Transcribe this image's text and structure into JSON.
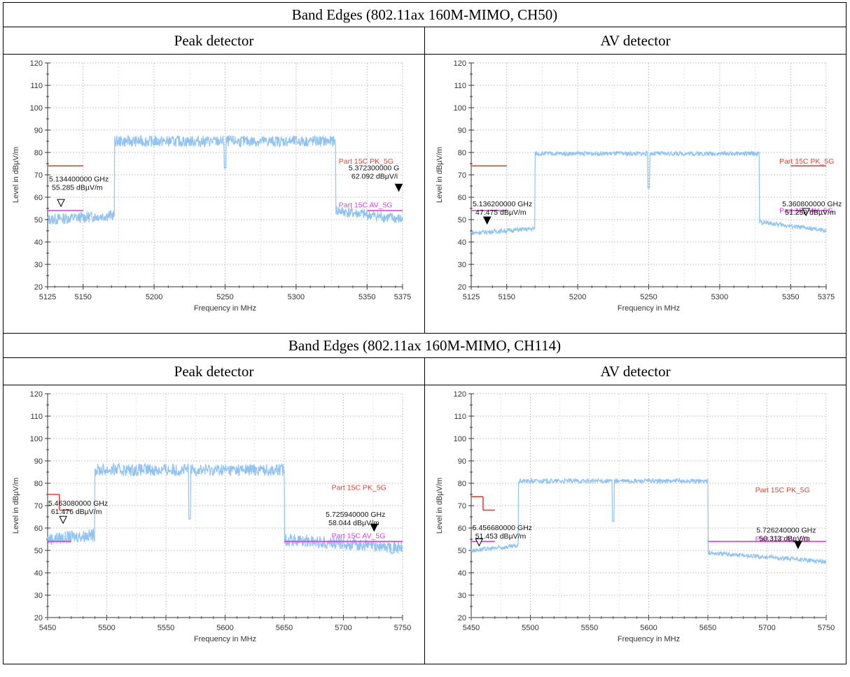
{
  "sections": [
    {
      "title": "Band Edges (802.11ax 160M-MIMO, CH50)"
    },
    {
      "title": "Band Edges (802.11ax 160M-MIMO, CH114)"
    }
  ],
  "detector_labels": {
    "peak": "Peak detector",
    "av": "AV detector"
  },
  "colors": {
    "trace": "#8fc3f5",
    "pk_limit": "#e8412f",
    "av_limit": "#e040e0",
    "grid": "#c8c8c8",
    "marker": "#000000"
  },
  "chart_data": [
    {
      "type": "line",
      "xlabel": "Frequency in MHz",
      "ylabel": "Level in dBµV/m",
      "xlim": [
        5125,
        5375
      ],
      "ylim": [
        20,
        120
      ],
      "xticks": [
        5125,
        5150,
        5200,
        5250,
        5300,
        5350,
        5375
      ],
      "yticks": [
        20,
        30,
        40,
        50,
        60,
        70,
        80,
        90,
        100,
        110,
        120
      ],
      "grid": true,
      "trace": {
        "low_x": [
          5125,
          5172
        ],
        "high_x": [
          5172,
          5328
        ],
        "high_to": 5375,
        "low_level": 50,
        "high_level": 85,
        "right_level": 54,
        "noise": 2.5,
        "notch_x": 5250,
        "notch_y": 73
      },
      "limits": [
        {
          "name": "Part 15C PK_5G",
          "color": "#e8412f",
          "segments": [
            [
              5125,
              74,
              5150,
              74
            ]
          ]
        },
        {
          "name": "Part 15C AV_5G",
          "color": "#e040e0",
          "segments": [
            [
              5125,
              54,
              5150,
              54
            ],
            [
              5350,
              54,
              5375,
              54
            ]
          ]
        }
      ],
      "limit_labels": [
        {
          "text": "Part 15C PK_5G",
          "color": "#e8412f",
          "x": 5330,
          "y": 75
        },
        {
          "text": "Part 15C AV_5G",
          "color": "#e040e0",
          "x": 5330,
          "y": 55.5
        }
      ],
      "markers": [
        {
          "x": 5134.4,
          "y": 55.285,
          "filled": false,
          "freq": "5.134400000 GHz",
          "level": "55.285 dBµV/m",
          "label_x": 5126,
          "label_y": 67
        },
        {
          "x": 5372.3,
          "y": 62.092,
          "filled": true,
          "freq": "5.372300000 G",
          "level": "62.092 dBµV/i",
          "label_x": 5337,
          "label_y": 72
        }
      ]
    },
    {
      "type": "line",
      "xlabel": "Frequency in MHz",
      "ylabel": "Level in dBµV/m",
      "xlim": [
        5125,
        5375
      ],
      "ylim": [
        20,
        120
      ],
      "xticks": [
        5125,
        5150,
        5200,
        5250,
        5300,
        5350,
        5375
      ],
      "yticks": [
        20,
        30,
        40,
        50,
        60,
        70,
        80,
        90,
        100,
        110,
        120
      ],
      "grid": true,
      "trace": {
        "low_x": [
          5125,
          5170
        ],
        "high_x": [
          5170,
          5328
        ],
        "high_to": 5375,
        "low_level": 44,
        "high_level": 79.5,
        "right_level": 49,
        "noise": 1.0,
        "notch_x": 5250,
        "notch_y": 64
      },
      "limits": [
        {
          "name": "Part 15C PK_5G",
          "color": "#e8412f",
          "segments": [
            [
              5125,
              74,
              5150,
              74
            ],
            [
              5350,
              74,
              5375,
              74
            ]
          ]
        },
        {
          "name": "Part 15C AV_5G",
          "color": "#e040e0",
          "segments": [
            [
              5125,
              54,
              5150,
              54
            ],
            [
              5350,
              54,
              5375,
              54
            ]
          ]
        }
      ],
      "limit_labels": [
        {
          "text": "Part 15C PK_5G",
          "color": "#e8412f",
          "x": 5342,
          "y": 75
        },
        {
          "text": "Part 15C AV_5G",
          "color": "#e040e0",
          "x": 5342,
          "y": 53
        }
      ],
      "markers": [
        {
          "x": 5136.2,
          "y": 47.475,
          "filled": true,
          "freq": "5.136200000 GHz",
          "level": "47.475 dBµV/m",
          "label_x": 5126,
          "label_y": 56
        },
        {
          "x": 5360.8,
          "y": 51.258,
          "filled": false,
          "freq": "5.360800000 GHz",
          "level": "51.258 dBµV/m",
          "label_x": 5344,
          "label_y": 56
        }
      ]
    },
    {
      "type": "line",
      "xlabel": "Frequency in MHz",
      "ylabel": "Level in dBµV/m",
      "xlim": [
        5450,
        5750
      ],
      "ylim": [
        20,
        120
      ],
      "xticks": [
        5450,
        5500,
        5550,
        5600,
        5650,
        5700,
        5750
      ],
      "yticks": [
        20,
        30,
        40,
        50,
        60,
        70,
        80,
        90,
        100,
        110,
        120
      ],
      "grid": true,
      "trace": {
        "low_x": [
          5450,
          5490
        ],
        "high_x": [
          5490,
          5650
        ],
        "high_to": 5750,
        "low_level": 55,
        "high_level": 86,
        "right_level": 55,
        "noise": 2.8,
        "notch_x": 5570,
        "notch_y": 64
      },
      "limits": [
        {
          "name": "Part 15C PK_5G",
          "color": "#e8412f",
          "segments": [
            [
              5450,
              75,
              5460,
              75
            ],
            [
              5460,
              75,
              5460,
              68
            ],
            [
              5460,
              68,
              5470,
              68
            ]
          ]
        },
        {
          "name": "Part 15C AV_5G",
          "color": "#e040e0",
          "segments": [
            [
              5450,
              54,
              5470,
              54
            ],
            [
              5650,
              54,
              5750,
              54
            ]
          ]
        }
      ],
      "limit_labels": [
        {
          "text": "Part 15C PK_5G",
          "color": "#e8412f",
          "x": 5690,
          "y": 77
        },
        {
          "text": "Part 15C AV_5G",
          "color": "#e040e0",
          "x": 5690,
          "y": 55.5
        }
      ],
      "markers": [
        {
          "x": 5463.08,
          "y": 61.476,
          "filled": false,
          "freq": "5.463080000 GHz",
          "level": "61.476 dBµV/m",
          "label_x": 5450.5,
          "label_y": 70
        },
        {
          "x": 5725.94,
          "y": 58.044,
          "filled": true,
          "freq": "5.725940000 GHz",
          "level": "58.044 dBµV/m",
          "label_x": 5685,
          "label_y": 65
        }
      ]
    },
    {
      "type": "line",
      "xlabel": "Frequency in MHz",
      "ylabel": "Level in dBµV/m",
      "xlim": [
        5450,
        5750
      ],
      "ylim": [
        20,
        120
      ],
      "xticks": [
        5450,
        5500,
        5550,
        5600,
        5650,
        5700,
        5750
      ],
      "yticks": [
        20,
        30,
        40,
        50,
        60,
        70,
        80,
        90,
        100,
        110,
        120
      ],
      "grid": true,
      "trace": {
        "low_x": [
          5450,
          5490
        ],
        "high_x": [
          5490,
          5650
        ],
        "high_to": 5750,
        "low_level": 50,
        "high_level": 81,
        "right_level": 49,
        "noise": 1.0,
        "notch_x": 5570,
        "notch_y": 63
      },
      "limits": [
        {
          "name": "Part 15C PK_5G",
          "color": "#e8412f",
          "segments": [
            [
              5450,
              74,
              5460,
              74
            ],
            [
              5460,
              74,
              5460,
              68
            ],
            [
              5460,
              68,
              5470,
              68
            ]
          ]
        },
        {
          "name": "Part 15C AV_5G",
          "color": "#e040e0",
          "segments": [
            [
              5450,
              54,
              5470,
              54
            ],
            [
              5650,
              54,
              5750,
              54
            ]
          ]
        }
      ],
      "limit_labels": [
        {
          "text": "Part 15C PK_5G",
          "color": "#e8412f",
          "x": 5690,
          "y": 76
        },
        {
          "text": "Part 15C AV_5G",
          "color": "#e040e0",
          "x": 5690,
          "y": 54
        }
      ],
      "markers": [
        {
          "x": 5456.68,
          "y": 51.453,
          "filled": false,
          "freq": "5.456680000 GHz",
          "level": "51.453 dBµV/m",
          "label_x": 5451,
          "label_y": 59
        },
        {
          "x": 5726.24,
          "y": 50.313,
          "filled": true,
          "freq": "5.726240000 GHz",
          "level": "50.313 dBµV/m",
          "label_x": 5691,
          "label_y": 58
        }
      ]
    }
  ]
}
